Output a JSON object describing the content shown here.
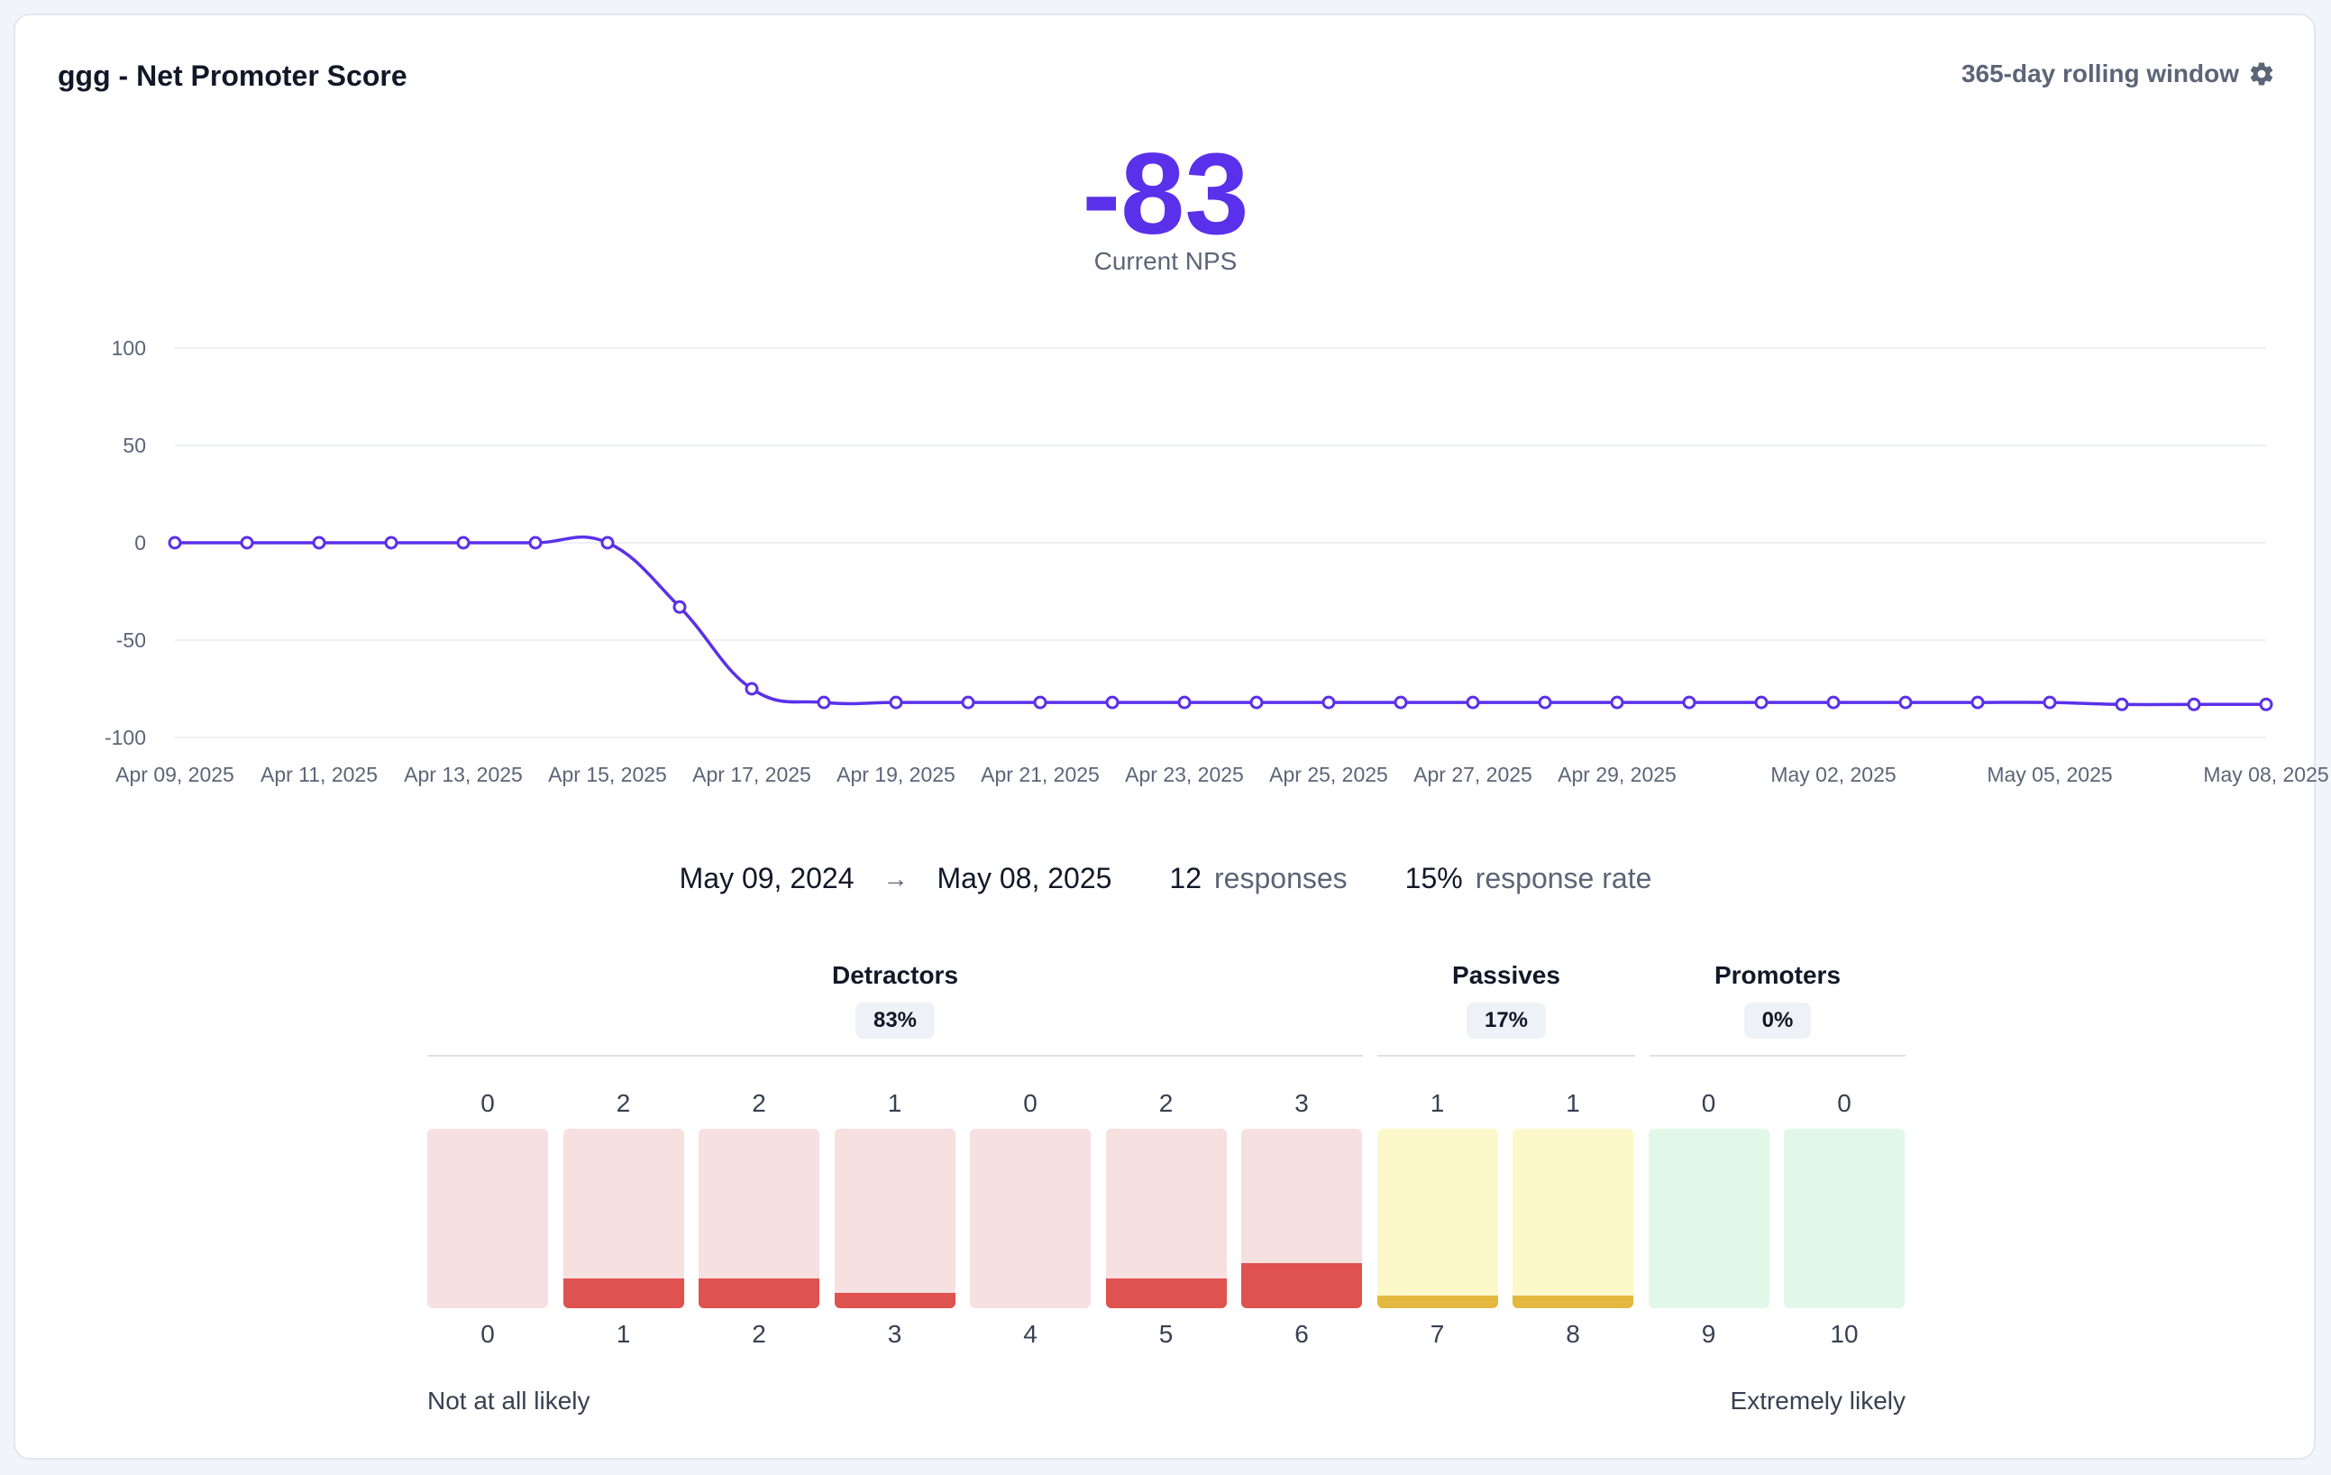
{
  "header": {
    "title": "ggg - Net Promoter Score",
    "window_label": "365-day rolling window",
    "window_icon": "gear-icon"
  },
  "score": {
    "value": "-83",
    "label": "Current NPS"
  },
  "chart_data": {
    "type": "line",
    "title": "",
    "ylim": [
      -100,
      100
    ],
    "y_ticks": [
      "100",
      "50",
      "0",
      "-50",
      "-100"
    ],
    "x_ticks": [
      "Apr 09, 2025",
      "Apr 11, 2025",
      "Apr 13, 2025",
      "Apr 15, 2025",
      "Apr 17, 2025",
      "Apr 19, 2025",
      "Apr 21, 2025",
      "Apr 23, 2025",
      "Apr 25, 2025",
      "Apr 27, 2025",
      "Apr 29, 2025",
      "May 02, 2025",
      "May 05, 2025",
      "May 08, 2025"
    ],
    "series": [
      {
        "name": "NPS",
        "color": "#5b30ea",
        "x": [
          "Apr 09",
          "Apr 10",
          "Apr 11",
          "Apr 12",
          "Apr 13",
          "Apr 14",
          "Apr 15",
          "Apr 16",
          "Apr 17",
          "Apr 18",
          "Apr 19",
          "Apr 20",
          "Apr 21",
          "Apr 22",
          "Apr 23",
          "Apr 24",
          "Apr 25",
          "Apr 26",
          "Apr 27",
          "Apr 28",
          "Apr 29",
          "Apr 30",
          "May 01",
          "May 02",
          "May 03",
          "May 04",
          "May 05",
          "May 06",
          "May 07",
          "May 08"
        ],
        "values": [
          0,
          0,
          0,
          0,
          0,
          0,
          0,
          -33,
          -75,
          -82,
          -82,
          -82,
          -82,
          -82,
          -82,
          -82,
          -82,
          -82,
          -82,
          -82,
          -82,
          -82,
          -82,
          -82,
          -82,
          -82,
          -82,
          -83,
          -83,
          -83
        ]
      }
    ]
  },
  "summary": {
    "start_date": "May 09, 2024",
    "arrow": "→",
    "end_date": "May 08, 2025",
    "responses_count": "12",
    "responses_label": "responses",
    "rate_value": "15%",
    "rate_label": "response rate"
  },
  "segments": [
    {
      "name": "Detractors",
      "percent": "83%"
    },
    {
      "name": "Passives",
      "percent": "17%"
    },
    {
      "name": "Promoters",
      "percent": "0%"
    }
  ],
  "distribution": [
    {
      "score": "0",
      "count": "0"
    },
    {
      "score": "1",
      "count": "2"
    },
    {
      "score": "2",
      "count": "2"
    },
    {
      "score": "3",
      "count": "1"
    },
    {
      "score": "4",
      "count": "0"
    },
    {
      "score": "5",
      "count": "2"
    },
    {
      "score": "6",
      "count": "3"
    },
    {
      "score": "7",
      "count": "1"
    },
    {
      "score": "8",
      "count": "1"
    },
    {
      "score": "9",
      "count": "0"
    },
    {
      "score": "10",
      "count": "0"
    }
  ],
  "scale": {
    "low_label": "Not at all likely",
    "high_label": "Extremely likely"
  },
  "colors": {
    "accent": "#5b30ea",
    "detractor_bg": "#f7e0e0",
    "detractor_fill": "#de524f",
    "passive_bg": "#fdf8c9",
    "passive_fill": "#e3b840",
    "promoter_bg": "#e1f8e8",
    "promoter_fill": "#3fbf6a"
  }
}
